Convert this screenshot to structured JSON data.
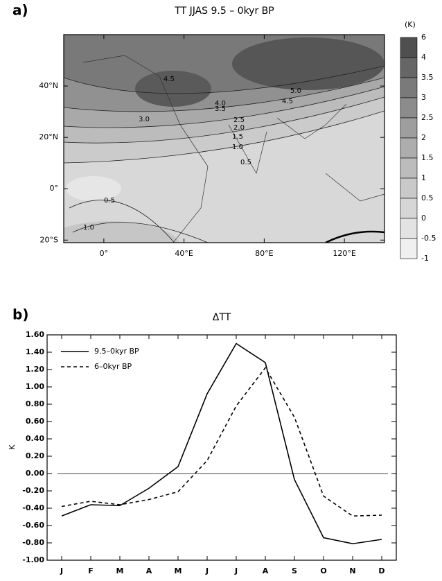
{
  "chart_data": [
    {
      "type": "contour",
      "panel_label": "a)",
      "title": "TT JJAS 9.5 – 0kyr BP",
      "xlim": [
        -20,
        140
      ],
      "xticks": [
        {
          "value": 0,
          "label": "0°"
        },
        {
          "value": 40,
          "label": "40°E"
        },
        {
          "value": 80,
          "label": "80°E"
        },
        {
          "value": 120,
          "label": "120°E"
        }
      ],
      "ylim": [
        -21,
        60
      ],
      "yticks": [
        {
          "value": -20,
          "label": "20°S"
        },
        {
          "value": 0,
          "label": "0°"
        },
        {
          "value": 20,
          "label": "20°N"
        },
        {
          "value": 40,
          "label": "40°N"
        }
      ],
      "contour_labels": [
        "4.5",
        "4.0",
        "3.5",
        "5.0",
        "4.5",
        "3.0",
        "2.5",
        "2.0",
        "1.5",
        "1.0",
        "0.5",
        "0.5",
        "1.0"
      ],
      "colorbar_unit": "(K)",
      "colorbar_levels": [
        6,
        4,
        3.5,
        3,
        2.5,
        2,
        1.5,
        1,
        0.5,
        0,
        -0.5,
        -1
      ],
      "colorbar_colors": [
        "#4f4f4f",
        "#666666",
        "#7a7a7a",
        "#8c8c8c",
        "#9e9e9e",
        "#adadad",
        "#bcbcbc",
        "#c9c9c9",
        "#d6d6d6",
        "#e3e3e3",
        "#f0f0f0"
      ]
    },
    {
      "type": "line",
      "panel_label": "b)",
      "title": "ΔTT",
      "y_label": "K",
      "categories": [
        "J",
        "F",
        "M",
        "A",
        "M",
        "J",
        "J",
        "A",
        "S",
        "O",
        "N",
        "D"
      ],
      "series": [
        {
          "name": "9.5–0kyr BP",
          "color": "#000000",
          "dash": "solid",
          "values": [
            -0.49,
            -0.36,
            -0.37,
            -0.17,
            0.08,
            0.92,
            1.5,
            1.28,
            -0.07,
            -0.74,
            -0.81,
            -0.76
          ]
        },
        {
          "name": "6–0kyr BP",
          "color": "#000000",
          "dash": "dashed",
          "values": [
            -0.38,
            -0.32,
            -0.36,
            -0.3,
            -0.21,
            0.15,
            0.78,
            1.22,
            0.65,
            -0.26,
            -0.49,
            -0.48
          ]
        }
      ],
      "ylim": [
        -1,
        1.6
      ],
      "yticks": [
        {
          "value": -1,
          "label": "-1.00"
        },
        {
          "value": -0.8,
          "label": "-0.80"
        },
        {
          "value": -0.6,
          "label": "-0.60"
        },
        {
          "value": -0.4,
          "label": "-0.40"
        },
        {
          "value": -0.2,
          "label": "-0.20"
        },
        {
          "value": 0,
          "label": "0.00"
        },
        {
          "value": 0.2,
          "label": "0.20"
        },
        {
          "value": 0.4,
          "label": "0.40"
        },
        {
          "value": 0.6,
          "label": "0.60"
        },
        {
          "value": 0.8,
          "label": "0.80"
        },
        {
          "value": 1,
          "label": "1.00"
        },
        {
          "value": 1.2,
          "label": "1.20"
        },
        {
          "value": 1.4,
          "label": "1.40"
        },
        {
          "value": 1.6,
          "label": "1.60"
        }
      ],
      "zero_line": true,
      "legend": "upper-left"
    }
  ]
}
